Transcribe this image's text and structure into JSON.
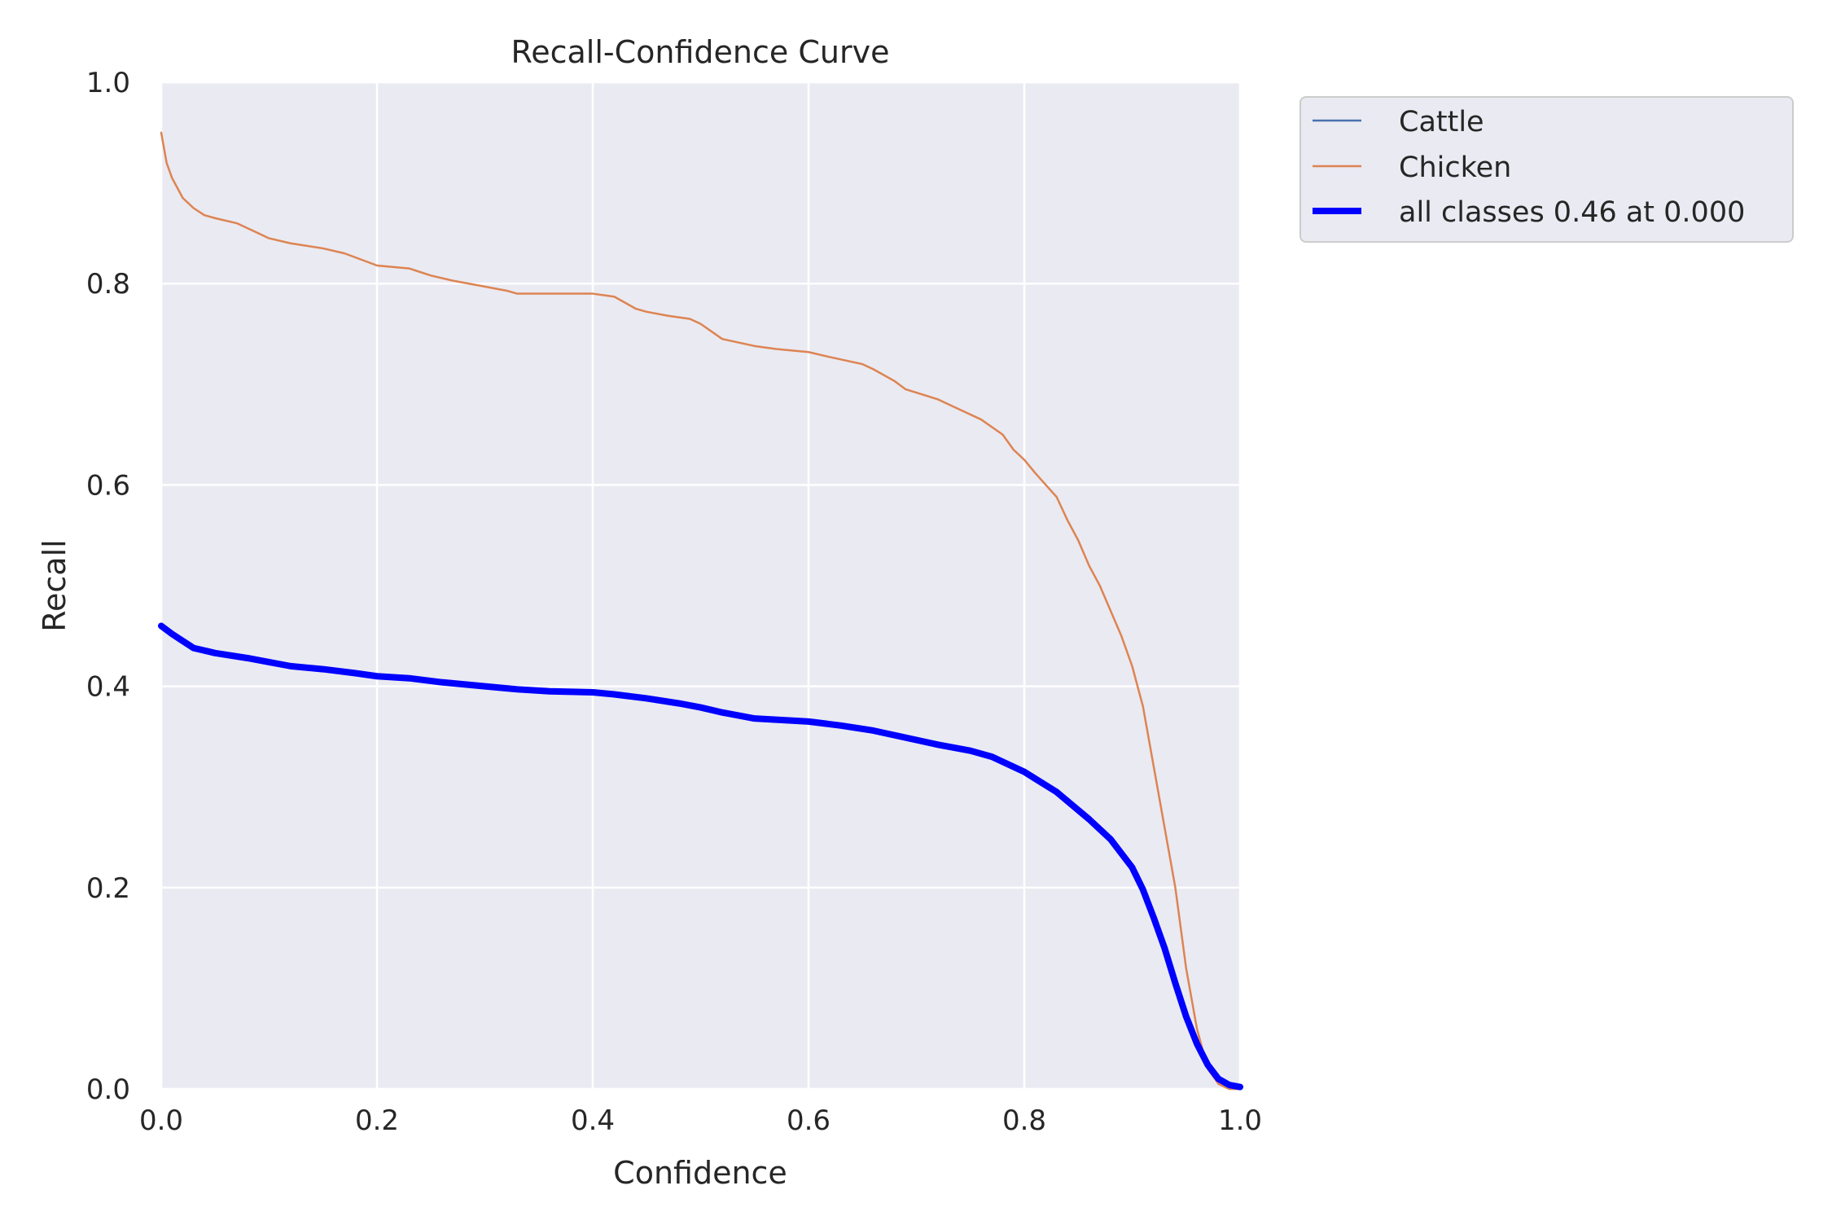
{
  "chart_data": {
    "type": "line",
    "title": "Recall-Confidence Curve",
    "xlabel": "Confidence",
    "ylabel": "Recall",
    "xlim": [
      0,
      1
    ],
    "ylim": [
      0,
      1
    ],
    "xticks": [
      "0.0",
      "0.2",
      "0.4",
      "0.6",
      "0.8",
      "1.0"
    ],
    "yticks": [
      "0.0",
      "0.2",
      "0.4",
      "0.6",
      "0.8",
      "1.0"
    ],
    "grid": true,
    "legend_position": "outside-top-right",
    "colors": {
      "background": "#eaeaf2",
      "grid": "#ffffff"
    },
    "series": [
      {
        "name": "Cattle",
        "color": "#4c72b0",
        "x": [],
        "y": []
      },
      {
        "name": "Chicken",
        "color": "#dd8452",
        "x": [
          0.0,
          0.005,
          0.01,
          0.02,
          0.03,
          0.04,
          0.05,
          0.07,
          0.09,
          0.1,
          0.12,
          0.15,
          0.17,
          0.19,
          0.2,
          0.23,
          0.25,
          0.27,
          0.3,
          0.32,
          0.33,
          0.35,
          0.38,
          0.4,
          0.42,
          0.44,
          0.45,
          0.47,
          0.49,
          0.5,
          0.52,
          0.55,
          0.57,
          0.6,
          0.62,
          0.65,
          0.66,
          0.68,
          0.69,
          0.72,
          0.74,
          0.76,
          0.78,
          0.79,
          0.8,
          0.81,
          0.82,
          0.83,
          0.84,
          0.85,
          0.86,
          0.87,
          0.88,
          0.89,
          0.9,
          0.91,
          0.92,
          0.93,
          0.94,
          0.95,
          0.96,
          0.97,
          0.98,
          0.99,
          1.0
        ],
        "y": [
          0.95,
          0.92,
          0.905,
          0.885,
          0.875,
          0.868,
          0.865,
          0.86,
          0.85,
          0.845,
          0.84,
          0.835,
          0.83,
          0.822,
          0.818,
          0.815,
          0.808,
          0.803,
          0.797,
          0.793,
          0.79,
          0.79,
          0.79,
          0.79,
          0.787,
          0.775,
          0.772,
          0.768,
          0.765,
          0.76,
          0.745,
          0.738,
          0.735,
          0.732,
          0.727,
          0.72,
          0.715,
          0.703,
          0.695,
          0.685,
          0.675,
          0.665,
          0.65,
          0.635,
          0.625,
          0.612,
          0.6,
          0.588,
          0.565,
          0.545,
          0.52,
          0.5,
          0.475,
          0.45,
          0.42,
          0.38,
          0.32,
          0.26,
          0.2,
          0.12,
          0.06,
          0.02,
          0.005,
          0.0,
          0.0
        ]
      },
      {
        "name": "all classes 0.46 at 0.000",
        "color": "#0000ff",
        "x": [
          0.0,
          0.01,
          0.02,
          0.03,
          0.05,
          0.08,
          0.1,
          0.12,
          0.15,
          0.18,
          0.2,
          0.23,
          0.26,
          0.3,
          0.33,
          0.36,
          0.4,
          0.42,
          0.45,
          0.48,
          0.5,
          0.52,
          0.55,
          0.6,
          0.63,
          0.66,
          0.69,
          0.72,
          0.75,
          0.77,
          0.8,
          0.83,
          0.86,
          0.88,
          0.9,
          0.91,
          0.92,
          0.93,
          0.94,
          0.95,
          0.96,
          0.97,
          0.98,
          0.99,
          1.0
        ],
        "y": [
          0.46,
          0.452,
          0.445,
          0.438,
          0.433,
          0.428,
          0.424,
          0.42,
          0.417,
          0.413,
          0.41,
          0.408,
          0.404,
          0.4,
          0.397,
          0.395,
          0.394,
          0.392,
          0.388,
          0.383,
          0.379,
          0.374,
          0.368,
          0.365,
          0.361,
          0.356,
          0.349,
          0.342,
          0.336,
          0.33,
          0.315,
          0.295,
          0.268,
          0.248,
          0.22,
          0.198,
          0.17,
          0.14,
          0.105,
          0.072,
          0.045,
          0.024,
          0.01,
          0.004,
          0.002
        ]
      }
    ]
  }
}
